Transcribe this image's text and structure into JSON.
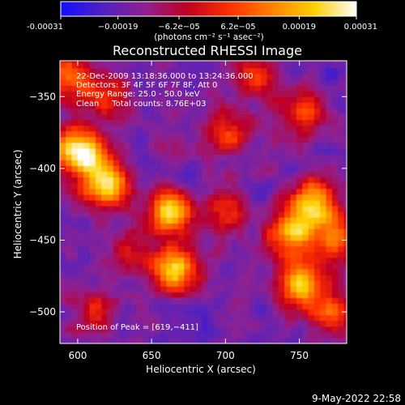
{
  "chart_data": {
    "type": "heatmap",
    "title": "Reconstructed RHESSI Image",
    "xlabel": "Heliocentric X (arcsec)",
    "ylabel": "Heliocentric Y (arcsec)",
    "xlim": [
      588,
      782
    ],
    "ylim": [
      -522,
      -325
    ],
    "x_ticks": [
      600,
      650,
      700,
      750
    ],
    "y_ticks": [
      -350,
      -400,
      -450,
      -500
    ],
    "x_tick_labels": [
      "600",
      "650",
      "700",
      "750"
    ],
    "y_tick_labels": [
      "−350",
      "−400",
      "−450",
      "−500"
    ],
    "colorbar": {
      "min": -0.00031,
      "max": 0.00031,
      "ticks": [
        -0.00031,
        -0.00019,
        -6.2e-05,
        6.2e-05,
        0.00019,
        0.00031
      ],
      "tick_labels": [
        "-0.00031",
        "−0.00019",
        "−6.2e−05",
        "6.2e−05",
        "0.00019",
        "0.00031"
      ],
      "units": "(photons cm⁻² s⁻¹ asec⁻²)",
      "colors": [
        "#1010ff",
        "#5020c0",
        "#902090",
        "#c00020",
        "#ff3000",
        "#ff8000",
        "#ffd000",
        "#ffffff"
      ]
    },
    "annotations": [
      "22‑Dec‑2009 13:18:36.000 to 13:24:36.000",
      "Detectors: 3F 4F 5F 6F 7F 8F, Att 0",
      "Energy Range: 25.0 ‑ 50.0 keV",
      "Clean     Total counts: 8.76E+03"
    ],
    "peak_label": "Position of Peak = [619,−411]",
    "peak": [
      619,
      -411
    ],
    "sources": [
      {
        "x": 619,
        "y": -411,
        "intensity": 1.0
      },
      {
        "x": 606,
        "y": -390,
        "intensity": 0.65
      },
      {
        "x": 593,
        "y": -335,
        "intensity": 0.6
      },
      {
        "x": 596,
        "y": -385,
        "intensity": 0.5
      },
      {
        "x": 617,
        "y": -350,
        "intensity": 0.45
      },
      {
        "x": 662,
        "y": -430,
        "intensity": 0.9
      },
      {
        "x": 666,
        "y": -470,
        "intensity": 0.85
      },
      {
        "x": 700,
        "y": -430,
        "intensity": 0.45
      },
      {
        "x": 760,
        "y": -425,
        "intensity": 0.85
      },
      {
        "x": 745,
        "y": -445,
        "intensity": 0.8
      },
      {
        "x": 775,
        "y": -450,
        "intensity": 0.6
      },
      {
        "x": 750,
        "y": -480,
        "intensity": 0.85
      },
      {
        "x": 773,
        "y": -500,
        "intensity": 0.55
      },
      {
        "x": 700,
        "y": -375,
        "intensity": 0.5
      },
      {
        "x": 753,
        "y": -362,
        "intensity": 0.5
      },
      {
        "x": 720,
        "y": -335,
        "intensity": 0.4
      },
      {
        "x": 610,
        "y": -500,
        "intensity": 0.4
      },
      {
        "x": 632,
        "y": -460,
        "intensity": 0.35
      }
    ]
  },
  "footer_date": "9‑May‑2022 22:58"
}
